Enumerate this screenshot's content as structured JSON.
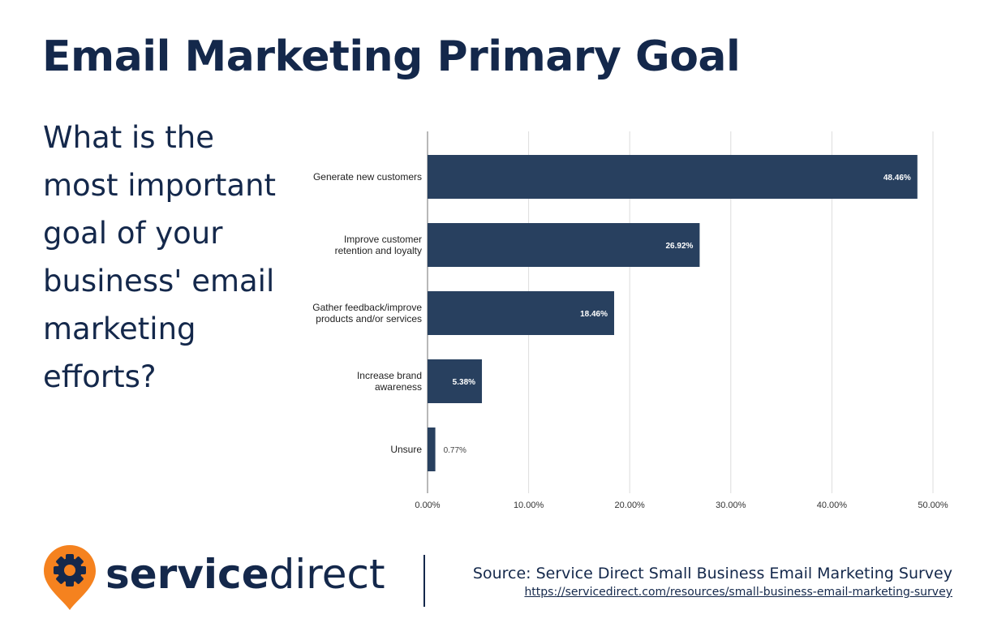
{
  "title": "Email Marketing Primary Goal",
  "question": "What is the most important goal of your business' email marketing efforts?",
  "chart_data": {
    "type": "bar",
    "orientation": "horizontal",
    "title": "",
    "xlabel": "",
    "ylabel": "",
    "categories": [
      "Generate new customers",
      "Improve customer retention and loyalty",
      "Gather feedback/improve products and/or services",
      "Increase brand awareness",
      "Unsure"
    ],
    "category_lines": [
      [
        "Generate new customers"
      ],
      [
        "Improve customer",
        "retention and loyalty"
      ],
      [
        "Gather feedback/improve",
        "products and/or services"
      ],
      [
        "Increase brand",
        "awareness"
      ],
      [
        "Unsure"
      ]
    ],
    "values": [
      48.46,
      26.92,
      18.46,
      5.38,
      0.77
    ],
    "data_labels": [
      "48.46%",
      "26.92%",
      "18.46%",
      "5.38%",
      "0.77%"
    ],
    "xlim": [
      0,
      50
    ],
    "xticks": [
      0,
      10,
      20,
      30,
      40,
      50
    ],
    "xtick_labels": [
      "0.00%",
      "10.00%",
      "20.00%",
      "30.00%",
      "40.00%",
      "50.00%"
    ],
    "grid": true,
    "legend": "none",
    "bar_color": "#28405f"
  },
  "logo": {
    "service": "service",
    "direct": "direct",
    "pin_color": "#f5821f"
  },
  "source": {
    "text": "Source: Service Direct Small Business Email Marketing Survey",
    "url": "https://servicedirect.com/resources/small-business-email-marketing-survey"
  }
}
